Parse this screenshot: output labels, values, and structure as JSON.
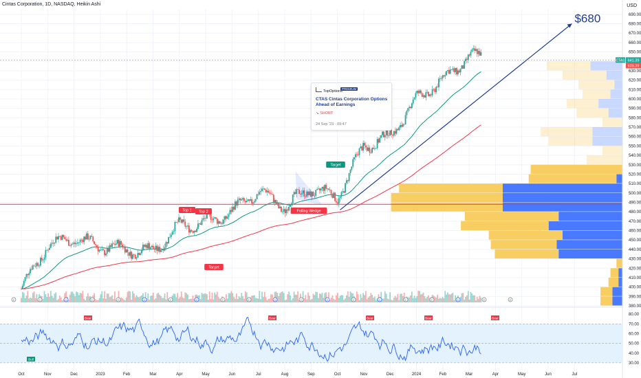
{
  "header": {
    "title": "Cintas Corporation, 1D, NASDAQ, Heikin Ashi",
    "currency": "USD"
  },
  "idea_card": {
    "brand": "TopOptions",
    "tag": "PREMIUM",
    "title": "CTAS Cintas Corporation  Options Ahead of Earnings",
    "direction": "SHORT",
    "date": "24 Sep '23 · 09:47"
  },
  "colors": {
    "up": "#26a69a",
    "down": "#ef5350",
    "ema_fast": "#089981",
    "ema_slow": "#f23645",
    "trendline": "#1e3c96",
    "rsi": "#2962ff",
    "rsi_band": "#e3f2fd",
    "vp_up": "#2962ff",
    "vp_down": "#f7c548",
    "annotation_red": "#f23645",
    "annotation_green": "#089981"
  },
  "chart_data": {
    "type": "candlestick",
    "symbol": "CTAS",
    "timeframe": "1D",
    "x_ticks": [
      "Oct",
      "Nov",
      "Dec",
      "2023",
      "Feb",
      "Mar",
      "Apr",
      "May",
      "Jun",
      "Jul",
      "Aug",
      "Sep",
      "Oct",
      "Nov",
      "Dec",
      "2024",
      "Feb",
      "Mar",
      "Apr",
      "May",
      "Jun",
      "Jul"
    ],
    "y_ticks": [
      380,
      390,
      400,
      410,
      420,
      430,
      440,
      450,
      460,
      470,
      480,
      490,
      500,
      510,
      520,
      530,
      540,
      550,
      560,
      570,
      580,
      590,
      600,
      610,
      620,
      630,
      640,
      650,
      660,
      670,
      680,
      690
    ],
    "ylim": [
      380,
      695
    ],
    "price_path_by_month": [
      {
        "month": "Oct 2022",
        "close": 398
      },
      {
        "month": "Nov 2022",
        "close": 445
      },
      {
        "month": "Dec 2022",
        "close": 452
      },
      {
        "month": "Jan 2023",
        "close": 443
      },
      {
        "month": "Feb 2023",
        "close": 440
      },
      {
        "month": "Mar 2023",
        "close": 438
      },
      {
        "month": "Apr 2023",
        "close": 465
      },
      {
        "month": "May 2023",
        "close": 468
      },
      {
        "month": "Jun 2023",
        "close": 480
      },
      {
        "month": "Jul 2023",
        "close": 502
      },
      {
        "month": "Aug 2023",
        "close": 485
      },
      {
        "month": "Sep 2023",
        "close": 505
      },
      {
        "month": "Oct 2023",
        "close": 495
      },
      {
        "month": "Nov 2023",
        "close": 550
      },
      {
        "month": "Dec 2023",
        "close": 560
      },
      {
        "month": "Jan 2024",
        "close": 600
      },
      {
        "month": "Feb 2024",
        "close": 620
      },
      {
        "month": "Mar 2024",
        "close": 645
      }
    ],
    "last_price": "641.39",
    "prev_price": "639.39",
    "ticker_label": "CTAS",
    "target_text": "$680",
    "target_value": 680,
    "horizontal_level": 488,
    "annotations": [
      {
        "label": "Top 1",
        "color": "red"
      },
      {
        "label": "Top 2",
        "color": "red"
      },
      {
        "label": "Target",
        "color": "red"
      },
      {
        "label": "Falling Wedge",
        "color": "red"
      },
      {
        "label": "Target",
        "color": "green"
      }
    ],
    "volume_profile": [
      {
        "price": 380,
        "up": 0.06,
        "down": 0.05
      },
      {
        "price": 390,
        "up": 0.06,
        "down": 0.05
      },
      {
        "price": 400,
        "up": 0.05,
        "down": 0.02
      },
      {
        "price": 410,
        "up": 0.04,
        "down": 0.02
      },
      {
        "price": 420,
        "up": 0.03,
        "down": 0.0
      },
      {
        "price": 430,
        "up": 0.32,
        "down": 0.32
      },
      {
        "price": 440,
        "up": 0.33,
        "down": 0.33
      },
      {
        "price": 450,
        "up": 0.37,
        "down": 0.3
      },
      {
        "price": 460,
        "up": 0.44,
        "down": 0.37
      },
      {
        "price": 470,
        "up": 0.47,
        "down": 0.32
      },
      {
        "price": 480,
        "up": 0.56,
        "down": 0.6
      },
      {
        "price": 490,
        "up": 0.56,
        "down": 0.6
      },
      {
        "price": 500,
        "up": 0.52,
        "down": 0.6
      },
      {
        "price": 510,
        "up": 0.44,
        "down": 0.03
      },
      {
        "price": 520,
        "up": 0.46,
        "down": 0.0
      },
      {
        "price": 530,
        "up": 0.18,
        "down": 0.0
      },
      {
        "price": 540,
        "up": 0.1,
        "down": 0.0
      },
      {
        "price": 550,
        "up": 0.22,
        "down": 0.15
      },
      {
        "price": 560,
        "up": 0.26,
        "down": 0.15
      },
      {
        "price": 570,
        "up": 0.1,
        "down": 0.0
      },
      {
        "price": 580,
        "up": 0.16,
        "down": 0.07
      },
      {
        "price": 590,
        "up": 0.16,
        "down": 0.12
      },
      {
        "price": 600,
        "up": 0.14,
        "down": 0.06
      },
      {
        "price": 610,
        "up": 0.18,
        "down": 0.04
      },
      {
        "price": 620,
        "up": 0.22,
        "down": 0.08
      },
      {
        "price": 630,
        "up": 0.22,
        "down": 0.16
      }
    ],
    "rsi": {
      "y_ticks": [
        30,
        40,
        50,
        60,
        70,
        80
      ],
      "ylim": [
        25,
        85
      ],
      "overbought": 70,
      "midline": 50,
      "oversold": 30,
      "bear_label": "Bear",
      "bull_label": "Bull"
    },
    "events": [
      "E",
      "E",
      "D",
      "E",
      "E",
      "D",
      "E",
      "D",
      "E",
      "E",
      "D",
      "E",
      "D",
      "E",
      "D",
      "E",
      "E",
      "D",
      "E",
      "E"
    ]
  }
}
